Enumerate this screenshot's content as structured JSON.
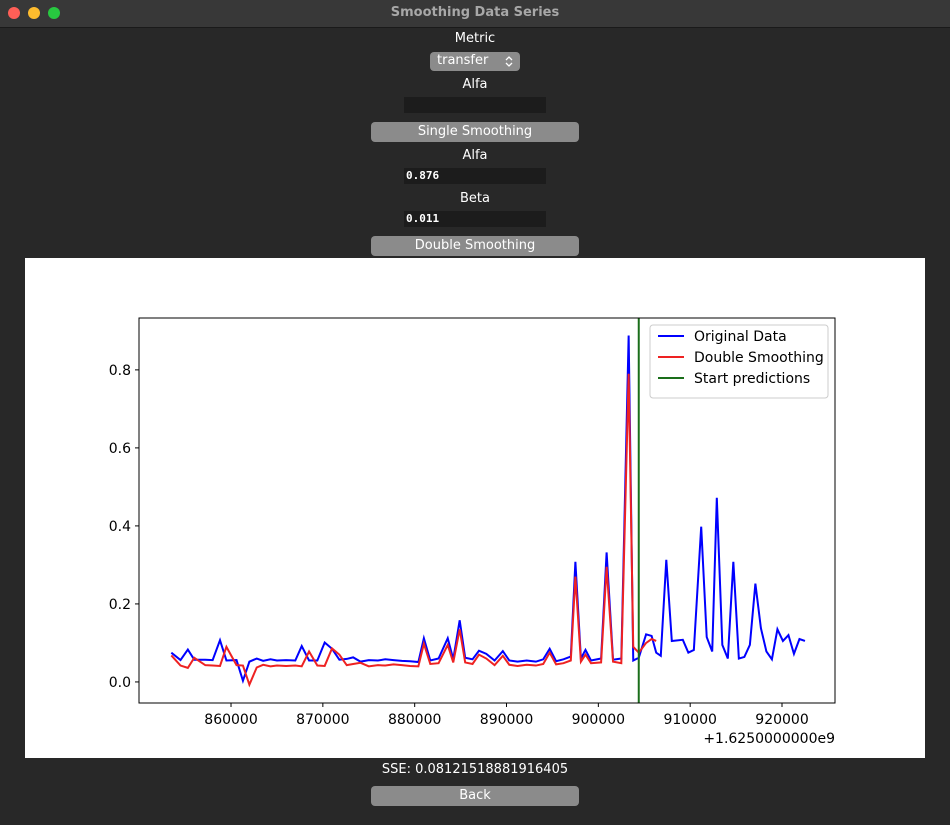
{
  "window": {
    "title": "Smoothing Data Series"
  },
  "controls": {
    "metric_label": "Metric",
    "metric_value": "transfer",
    "single_alfa_label": "Alfa",
    "single_button": "Single Smoothing",
    "double_alfa_label": "Alfa",
    "double_alfa_value": "0.876",
    "beta_label": "Beta",
    "beta_value": "0.011",
    "double_button": "Double Smoothing"
  },
  "chart_data": {
    "type": "line",
    "x": [
      853500,
      854500,
      855300,
      856000,
      857200,
      858000,
      858800,
      859500,
      860600,
      861300,
      862000,
      862800,
      863500,
      864300,
      865000,
      866000,
      867000,
      867700,
      868500,
      869400,
      870200,
      871000,
      871800,
      872600,
      873300,
      874100,
      875000,
      876000,
      876800,
      877700,
      878600,
      879500,
      880400,
      881000,
      881700,
      882600,
      883600,
      884200,
      884900,
      885500,
      886300,
      887000,
      887800,
      888700,
      889600,
      890300,
      891200,
      892200,
      893200,
      894000,
      894700,
      895400,
      896200,
      897000,
      897500,
      898100,
      898600,
      899200,
      900300,
      900900,
      901600,
      902500,
      903300,
      903800,
      904400,
      905200,
      905800,
      906300,
      906800,
      907400,
      908000,
      909200,
      909800,
      910400,
      911200,
      911800,
      912400,
      912900,
      913500,
      914100,
      914700,
      915300,
      915900,
      916500,
      917100,
      917700,
      918300,
      918900,
      919500,
      920100,
      920700,
      921300,
      921900,
      922500
    ],
    "series": [
      {
        "name": "Original Data",
        "color": "#0000ff",
        "values": [
          0.075,
          0.056,
          0.083,
          0.057,
          0.057,
          0.056,
          0.107,
          0.055,
          0.056,
          0.003,
          0.052,
          0.06,
          0.054,
          0.058,
          0.055,
          0.056,
          0.055,
          0.092,
          0.055,
          0.055,
          0.101,
          0.085,
          0.057,
          0.059,
          0.063,
          0.052,
          0.056,
          0.055,
          0.058,
          0.056,
          0.054,
          0.053,
          0.051,
          0.112,
          0.055,
          0.06,
          0.112,
          0.058,
          0.158,
          0.062,
          0.058,
          0.08,
          0.072,
          0.055,
          0.079,
          0.055,
          0.052,
          0.055,
          0.052,
          0.058,
          0.085,
          0.053,
          0.058,
          0.065,
          0.308,
          0.06,
          0.082,
          0.055,
          0.06,
          0.332,
          0.057,
          0.06,
          0.888,
          0.055,
          0.062,
          0.122,
          0.118,
          0.075,
          0.067,
          0.313,
          0.105,
          0.108,
          0.075,
          0.082,
          0.398,
          0.115,
          0.078,
          0.472,
          0.095,
          0.06,
          0.308,
          0.06,
          0.064,
          0.095,
          0.252,
          0.138,
          0.078,
          0.058,
          0.135,
          0.105,
          0.12,
          0.072,
          0.11,
          0.105
        ]
      },
      {
        "name": "Double Smoothing",
        "color": "#ee2222",
        "values": [
          0.068,
          0.042,
          0.036,
          0.062,
          0.043,
          0.042,
          0.041,
          0.09,
          0.043,
          0.042,
          -0.007,
          0.037,
          0.044,
          0.04,
          0.042,
          0.041,
          0.042,
          0.04,
          0.078,
          0.042,
          0.041,
          0.086,
          0.07,
          0.043,
          0.046,
          0.049,
          0.04,
          0.043,
          0.042,
          0.045,
          0.043,
          0.041,
          0.04,
          0.098,
          0.046,
          0.048,
          0.095,
          0.05,
          0.135,
          0.05,
          0.046,
          0.07,
          0.06,
          0.043,
          0.067,
          0.044,
          0.041,
          0.044,
          0.042,
          0.046,
          0.075,
          0.045,
          0.048,
          0.055,
          0.27,
          0.052,
          0.07,
          0.048,
          0.05,
          0.295,
          0.052,
          0.048,
          0.79,
          0.09,
          0.075,
          0.1,
          0.11,
          0.105,
          null,
          null,
          null,
          null,
          null,
          null,
          null,
          null,
          null,
          null,
          null,
          null,
          null,
          null,
          null,
          null,
          null,
          null,
          null,
          null,
          null,
          null,
          null,
          null,
          null,
          null
        ]
      }
    ],
    "vlines": [
      {
        "name": "Start predictions",
        "color": "#1a6e1a",
        "x": 904400
      }
    ],
    "xlim": [
      849980,
      925770
    ],
    "xticks": [
      860000,
      870000,
      880000,
      890000,
      900000,
      910000,
      920000
    ],
    "x_offset_label": "+1.6250000000e9",
    "ylim": [
      -0.054,
      0.933
    ],
    "yticks": [
      {
        "value": 0,
        "label": "0.0"
      },
      0.2,
      0.4,
      0.6,
      0.8
    ],
    "legend": "upper right"
  },
  "sse": "SSE: 0.08121518881916405",
  "back_button": "Back"
}
